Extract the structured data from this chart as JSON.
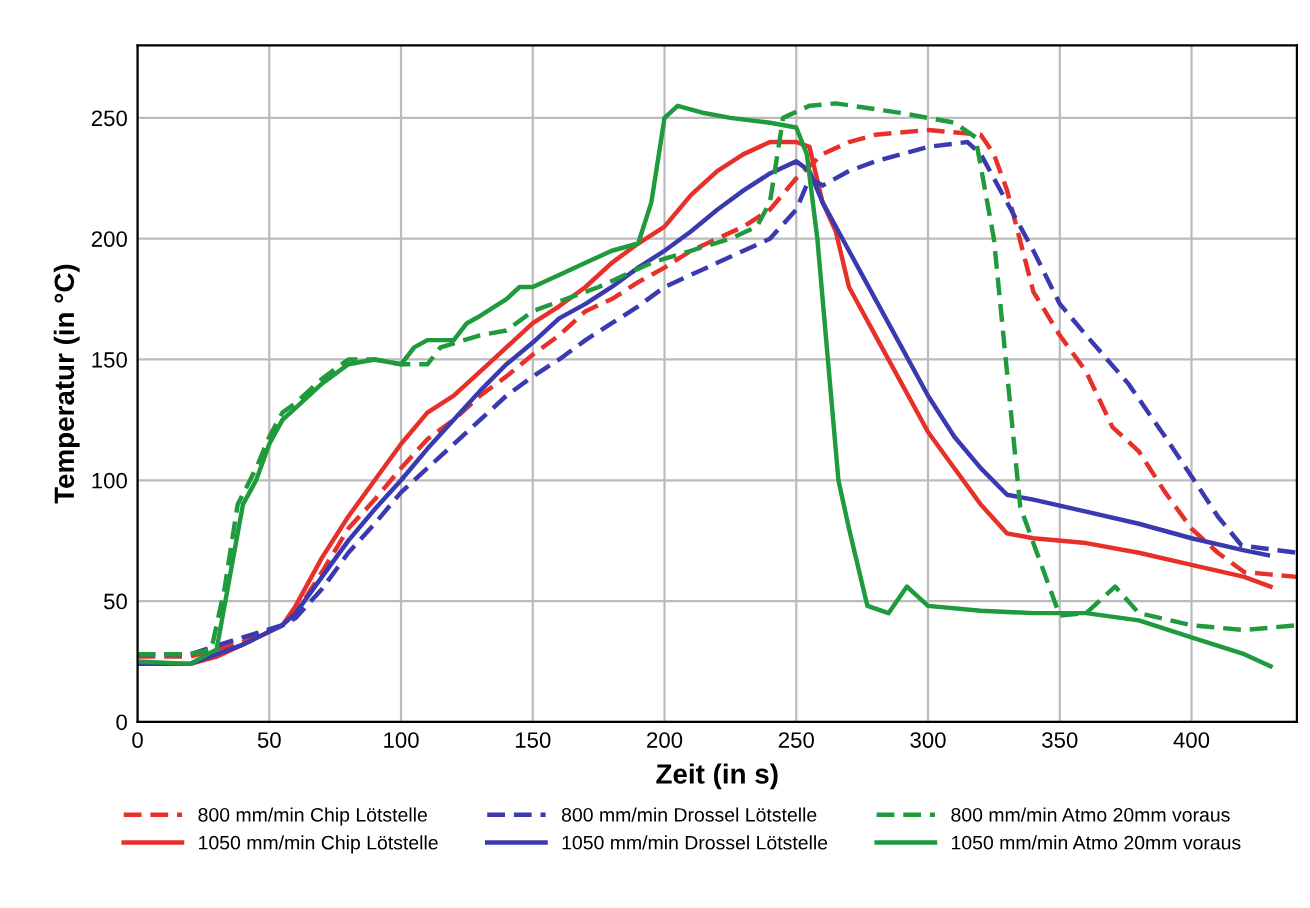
{
  "chart_data": {
    "type": "line",
    "xlabel": "Zeit (in s)",
    "ylabel": "Temperatur (in °C)",
    "xlim": [
      0,
      440
    ],
    "ylim": [
      0,
      280
    ],
    "xticks": [
      0,
      50,
      100,
      150,
      200,
      250,
      300,
      350,
      400
    ],
    "yticks": [
      0,
      50,
      100,
      150,
      200,
      250
    ],
    "grid": true,
    "legend": "bottom",
    "marker": "none",
    "series": [
      {
        "name": "800 mm/min Chip Lötstelle",
        "color": "#e8302a",
        "line_style": "dashed",
        "x": [
          0,
          20,
          40,
          55,
          60,
          70,
          80,
          90,
          100,
          110,
          120,
          130,
          140,
          150,
          160,
          170,
          180,
          190,
          200,
          210,
          220,
          230,
          240,
          250,
          260,
          270,
          280,
          300,
          320,
          325,
          330,
          340,
          350,
          360,
          370,
          380,
          390,
          400,
          410,
          420,
          440
        ],
        "values": [
          27,
          27,
          33,
          40,
          45,
          62,
          80,
          92,
          105,
          117,
          125,
          135,
          143,
          152,
          160,
          170,
          175,
          182,
          188,
          195,
          200,
          205,
          212,
          225,
          235,
          240,
          243,
          245,
          243,
          235,
          220,
          178,
          160,
          145,
          122,
          112,
          95,
          80,
          70,
          62,
          60
        ]
      },
      {
        "name": "1050 mm/min Chip Lötstelle",
        "color": "#e8302a",
        "line_style": "solid",
        "x": [
          0,
          20,
          30,
          40,
          55,
          60,
          70,
          80,
          90,
          100,
          110,
          120,
          130,
          140,
          150,
          160,
          170,
          180,
          190,
          200,
          210,
          220,
          230,
          240,
          250,
          255,
          260,
          265,
          270,
          280,
          290,
          300,
          310,
          320,
          330,
          340,
          360,
          380,
          400,
          420,
          430
        ],
        "values": [
          24,
          24,
          27,
          32,
          40,
          48,
          68,
          85,
          100,
          115,
          128,
          135,
          145,
          155,
          165,
          172,
          180,
          190,
          198,
          205,
          218,
          228,
          235,
          240,
          240,
          238,
          215,
          203,
          180,
          160,
          140,
          120,
          105,
          90,
          78,
          76,
          74,
          70,
          65,
          60,
          56
        ]
      },
      {
        "name": "800 mm/min Drossel Lötstelle",
        "color": "#3a3ab0",
        "line_style": "dashed",
        "x": [
          0,
          20,
          40,
          55,
          60,
          70,
          80,
          90,
          100,
          110,
          120,
          130,
          140,
          150,
          160,
          170,
          180,
          190,
          200,
          210,
          220,
          230,
          240,
          250,
          255,
          260,
          270,
          280,
          300,
          315,
          320,
          330,
          340,
          350,
          360,
          376,
          390,
          401,
          410,
          419,
          440
        ],
        "values": [
          28,
          28,
          35,
          40,
          43,
          55,
          70,
          82,
          95,
          105,
          115,
          125,
          135,
          143,
          150,
          158,
          165,
          172,
          180,
          185,
          190,
          195,
          200,
          212,
          225,
          222,
          228,
          232,
          238,
          240,
          235,
          215,
          195,
          173,
          160,
          140,
          118,
          100,
          85,
          73,
          70
        ]
      },
      {
        "name": "1050 mm/min Drossel Lötstelle",
        "color": "#3a3ab0",
        "line_style": "solid",
        "x": [
          0,
          20,
          40,
          55,
          60,
          70,
          80,
          90,
          100,
          110,
          120,
          130,
          140,
          150,
          160,
          170,
          180,
          190,
          200,
          210,
          220,
          230,
          240,
          250,
          255,
          260,
          270,
          280,
          290,
          300,
          310,
          320,
          330,
          340,
          360,
          380,
          400,
          420,
          429
        ],
        "values": [
          24,
          24,
          32,
          40,
          45,
          60,
          75,
          88,
          100,
          113,
          125,
          137,
          148,
          157,
          167,
          173,
          180,
          188,
          195,
          203,
          212,
          220,
          227,
          232,
          228,
          215,
          195,
          175,
          155,
          135,
          118,
          105,
          94,
          92,
          87,
          82,
          76,
          71,
          69
        ]
      },
      {
        "name": "800 mm/min Atmo 20mm voraus",
        "color": "#1f9a3c",
        "line_style": "dashed",
        "x": [
          0,
          20,
          28,
          33,
          38,
          45,
          50,
          55,
          60,
          70,
          80,
          90,
          100,
          110,
          115,
          130,
          140,
          150,
          175,
          195,
          210,
          225,
          235,
          240,
          245,
          255,
          265,
          290,
          310,
          318,
          325,
          335,
          350,
          360,
          371,
          380,
          400,
          420,
          440
        ],
        "values": [
          28,
          28,
          30,
          55,
          90,
          105,
          118,
          128,
          132,
          142,
          150,
          150,
          148,
          148,
          155,
          160,
          162,
          170,
          180,
          190,
          195,
          200,
          205,
          215,
          250,
          255,
          256,
          252,
          248,
          242,
          200,
          89,
          44,
          45,
          56,
          45,
          40,
          38,
          40
        ]
      },
      {
        "name": "1050 mm/min Atmo 20mm voraus",
        "color": "#1f9a3c",
        "line_style": "solid",
        "x": [
          0,
          20,
          30,
          35,
          40,
          45,
          50,
          55,
          60,
          70,
          80,
          90,
          100,
          105,
          110,
          120,
          125,
          130,
          140,
          145,
          150,
          160,
          170,
          180,
          190,
          195,
          200,
          205,
          215,
          225,
          240,
          250,
          254,
          258,
          262,
          266,
          270,
          277,
          285,
          292,
          300,
          320,
          340,
          360,
          380,
          400,
          420,
          430
        ],
        "values": [
          25,
          24,
          30,
          60,
          90,
          100,
          115,
          125,
          130,
          140,
          148,
          150,
          148,
          155,
          158,
          158,
          165,
          168,
          175,
          180,
          180,
          185,
          190,
          195,
          198,
          215,
          250,
          255,
          252,
          250,
          248,
          246,
          235,
          200,
          150,
          100,
          80,
          48,
          45,
          56,
          48,
          46,
          45,
          45,
          42,
          35,
          28,
          23
        ]
      }
    ]
  }
}
